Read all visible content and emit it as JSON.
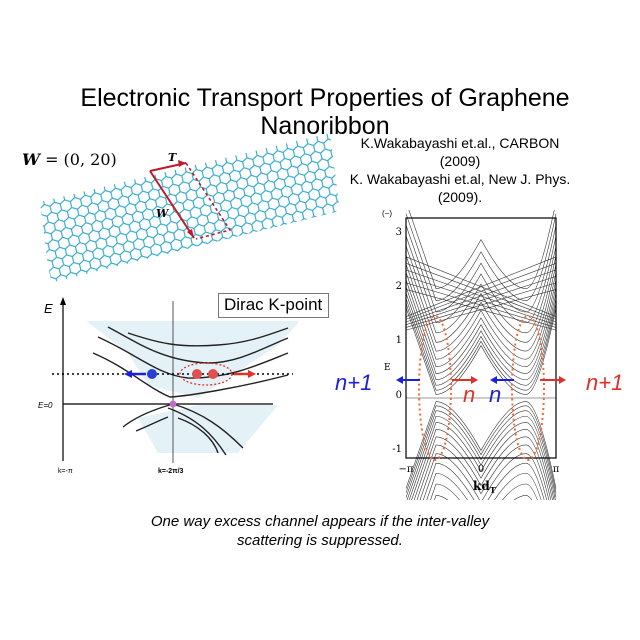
{
  "slide": {
    "title": "Electronic Transport Properties of Graphene Nanoribbon",
    "references": [
      "K.Wakabayashi et.al., CARBON",
      "(2009)",
      "K. Wakabayashi et.al, New J. Phys.",
      "(2009)."
    ],
    "caption_line1": "One way excess channel appears if the inter-valley",
    "caption_line2": "scattering is suppressed."
  },
  "lattice_figure": {
    "w_symbol": "W",
    "w_value": "= (0, 20)",
    "vector_t": "T",
    "vector_w": "W",
    "line_color": "#2aa6c8"
  },
  "dispersion_figure": {
    "axis_e": "E",
    "e_zero": "E=0",
    "k_left": "k=-π",
    "k_right": "k=-2π/3",
    "inset_label": "Dirac K-point"
  },
  "band_figure": {
    "y_label": "E",
    "y_ticks": [
      "3",
      "2",
      "1",
      "0",
      "-1"
    ],
    "x_ticks": [
      "−π",
      "0",
      "π"
    ],
    "x_label": "kd",
    "x_label_sub": "T",
    "corner_mark": "(−)"
  },
  "channel_labels": {
    "left_outer": "n+1",
    "mid_red": "n",
    "mid_blue": "n",
    "right_outer": "n+1",
    "blue_color": "#1a22d8",
    "red_color": "#e0302a"
  }
}
